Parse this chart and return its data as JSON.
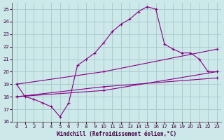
{
  "title": "",
  "xlabel": "Windchill (Refroidissement éolien,°C)",
  "ylabel": "",
  "bg_color": "#cce8e8",
  "grid_color": "#aacccc",
  "line_color": "#880088",
  "xlim": [
    -0.5,
    23.5
  ],
  "ylim": [
    16,
    25.5
  ],
  "yticks": [
    16,
    17,
    18,
    19,
    20,
    21,
    22,
    23,
    24,
    25
  ],
  "xticks": [
    0,
    1,
    2,
    3,
    4,
    5,
    6,
    7,
    8,
    9,
    10,
    11,
    12,
    13,
    14,
    15,
    16,
    17,
    18,
    19,
    20,
    21,
    22,
    23
  ],
  "series": [
    [
      0,
      19.0
    ],
    [
      1,
      18.0
    ],
    [
      2,
      17.8
    ],
    [
      3,
      17.5
    ],
    [
      4,
      17.2
    ],
    [
      5,
      16.4
    ],
    [
      6,
      17.5
    ],
    [
      7,
      20.5
    ],
    [
      8,
      21.0
    ],
    [
      9,
      21.5
    ],
    [
      10,
      22.3
    ],
    [
      11,
      23.2
    ],
    [
      12,
      23.8
    ],
    [
      13,
      24.2
    ],
    [
      14,
      24.8
    ],
    [
      15,
      25.2
    ],
    [
      16,
      25.0
    ],
    [
      17,
      22.2
    ],
    [
      18,
      21.8
    ],
    [
      19,
      21.5
    ],
    [
      20,
      21.5
    ],
    [
      21,
      21.0
    ],
    [
      22,
      20.0
    ],
    [
      23,
      20.0
    ]
  ],
  "line1": [
    [
      0,
      18.0
    ],
    [
      10,
      18.5
    ],
    [
      23,
      20.0
    ]
  ],
  "line2": [
    [
      0,
      18.0
    ],
    [
      10,
      18.8
    ],
    [
      23,
      19.5
    ]
  ],
  "line3": [
    [
      0,
      19.0
    ],
    [
      10,
      20.0
    ],
    [
      23,
      21.8
    ]
  ]
}
